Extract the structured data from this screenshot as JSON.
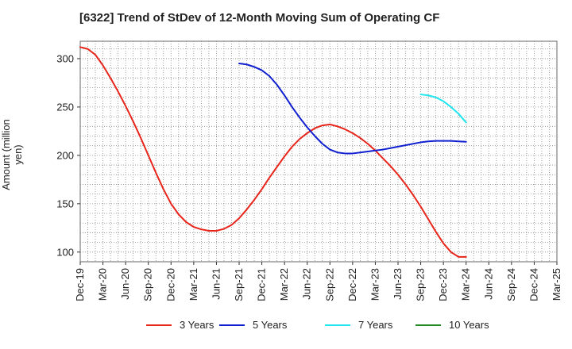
{
  "title": "[6322]  Trend of StDev of 12-Month Moving Sum of Operating CF",
  "chart_data": {
    "type": "line",
    "title": "[6322]  Trend of StDev of 12-Month Moving Sum of Operating CF",
    "xlabel": "",
    "ylabel": "Amount (million yen)",
    "x_ticks": [
      "Dec-19",
      "Mar-20",
      "Jun-20",
      "Sep-20",
      "Dec-20",
      "Mar-21",
      "Jun-21",
      "Sep-21",
      "Dec-21",
      "Mar-22",
      "Jun-22",
      "Sep-22",
      "Dec-22",
      "Mar-23",
      "Jun-23",
      "Sep-23",
      "Dec-23",
      "Mar-24",
      "Jun-24",
      "Sep-24",
      "Dec-24",
      "Mar-25"
    ],
    "y_ticks": [
      100,
      150,
      200,
      250,
      300
    ],
    "ylim": [
      90,
      318
    ],
    "grid": true,
    "legend_position": "bottom",
    "series": [
      {
        "name": "3 Years",
        "color": "#e8251b",
        "points": [
          [
            "Dec-19",
            312
          ],
          [
            "Jan-20",
            310
          ],
          [
            "Feb-20",
            304
          ],
          [
            "Mar-20",
            293
          ],
          [
            "Apr-20",
            280
          ],
          [
            "May-20",
            266
          ],
          [
            "Jun-20",
            251
          ],
          [
            "Jul-20",
            235
          ],
          [
            "Aug-20",
            218
          ],
          [
            "Sep-20",
            200
          ],
          [
            "Oct-20",
            182
          ],
          [
            "Nov-20",
            165
          ],
          [
            "Dec-20",
            150
          ],
          [
            "Jan-21",
            139
          ],
          [
            "Feb-21",
            131
          ],
          [
            "Mar-21",
            126
          ],
          [
            "Apr-21",
            123.5
          ],
          [
            "May-21",
            122
          ],
          [
            "Jun-21",
            122
          ],
          [
            "Jul-21",
            124
          ],
          [
            "Aug-21",
            128
          ],
          [
            "Sep-21",
            135
          ],
          [
            "Oct-21",
            144
          ],
          [
            "Nov-21",
            154
          ],
          [
            "Dec-21",
            165
          ],
          [
            "Jan-22",
            177
          ],
          [
            "Feb-22",
            188
          ],
          [
            "Mar-22",
            199
          ],
          [
            "Apr-22",
            209
          ],
          [
            "May-22",
            217
          ],
          [
            "Jun-22",
            223
          ],
          [
            "Jul-22",
            228
          ],
          [
            "Aug-22",
            231
          ],
          [
            "Sep-22",
            232
          ],
          [
            "Oct-22",
            230
          ],
          [
            "Nov-22",
            227
          ],
          [
            "Dec-22",
            223
          ],
          [
            "Jan-23",
            218
          ],
          [
            "Feb-23",
            212
          ],
          [
            "Mar-23",
            205
          ],
          [
            "Apr-23",
            197
          ],
          [
            "May-23",
            189
          ],
          [
            "Jun-23",
            180
          ],
          [
            "Jul-23",
            170
          ],
          [
            "Aug-23",
            159
          ],
          [
            "Sep-23",
            147
          ],
          [
            "Oct-23",
            134
          ],
          [
            "Nov-23",
            121
          ],
          [
            "Dec-23",
            109
          ],
          [
            "Jan-24",
            100
          ],
          [
            "Feb-24",
            95
          ],
          [
            "Mar-24",
            95
          ]
        ]
      },
      {
        "name": "5 Years",
        "color": "#1020d0",
        "points": [
          [
            "Sep-21",
            295
          ],
          [
            "Oct-21",
            294
          ],
          [
            "Nov-21",
            291.5
          ],
          [
            "Dec-21",
            288
          ],
          [
            "Jan-22",
            282
          ],
          [
            "Feb-22",
            273
          ],
          [
            "Mar-22",
            262
          ],
          [
            "Apr-22",
            250
          ],
          [
            "May-22",
            239
          ],
          [
            "Jun-22",
            229
          ],
          [
            "Jul-22",
            220
          ],
          [
            "Aug-22",
            212
          ],
          [
            "Sep-22",
            206
          ],
          [
            "Oct-22",
            203
          ],
          [
            "Nov-22",
            202
          ],
          [
            "Dec-22",
            202
          ],
          [
            "Jan-23",
            203
          ],
          [
            "Feb-23",
            204
          ],
          [
            "Mar-23",
            205
          ],
          [
            "Apr-23",
            206
          ],
          [
            "May-23",
            207.5
          ],
          [
            "Jun-23",
            209
          ],
          [
            "Jul-23",
            210.5
          ],
          [
            "Aug-23",
            212
          ],
          [
            "Sep-23",
            213.5
          ],
          [
            "Oct-23",
            214.5
          ],
          [
            "Nov-23",
            215
          ],
          [
            "Dec-23",
            215
          ],
          [
            "Jan-24",
            215
          ],
          [
            "Feb-24",
            214.5
          ],
          [
            "Mar-24",
            214
          ]
        ]
      },
      {
        "name": "7 Years",
        "color": "#1fe6ef",
        "points": [
          [
            "Sep-23",
            263
          ],
          [
            "Oct-23",
            262
          ],
          [
            "Nov-23",
            260
          ],
          [
            "Dec-23",
            256
          ],
          [
            "Jan-24",
            250
          ],
          [
            "Feb-24",
            243
          ],
          [
            "Mar-24",
            234
          ]
        ]
      },
      {
        "name": "10 Years",
        "color": "#1f8a1f",
        "points": []
      }
    ]
  }
}
